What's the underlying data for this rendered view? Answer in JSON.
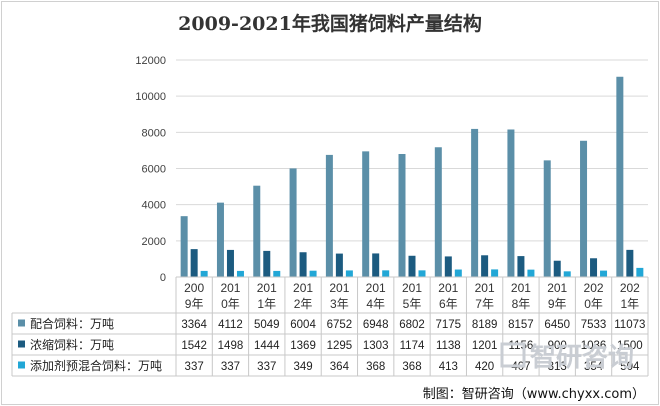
{
  "chart_data": {
    "type": "bar",
    "title": "2009-2021年我国猪饲料产量结构",
    "categories": [
      [
        "200",
        "9年"
      ],
      [
        "201",
        "0年"
      ],
      [
        "201",
        "1年"
      ],
      [
        "201",
        "2年"
      ],
      [
        "201",
        "3年"
      ],
      [
        "201",
        "4年"
      ],
      [
        "201",
        "5年"
      ],
      [
        "201",
        "6年"
      ],
      [
        "201",
        "7年"
      ],
      [
        "201",
        "8年"
      ],
      [
        "201",
        "9年"
      ],
      [
        "202",
        "0年"
      ],
      [
        "202",
        "1年"
      ]
    ],
    "ylim": [
      0,
      12000
    ],
    "yticks": [
      "0",
      "2000",
      "4000",
      "6000",
      "8000",
      "10000",
      "12000"
    ],
    "grid": true,
    "legend": "data-table",
    "series": [
      {
        "name": "配合饲料：万吨",
        "color": "#5b8fa8",
        "values": [
          3364,
          4112,
          5049,
          6004,
          6752,
          6948,
          6802,
          7175,
          8189,
          8157,
          6450,
          7533,
          11073
        ]
      },
      {
        "name": "浓缩饲料：万吨",
        "color": "#1c5b80",
        "values": [
          1542,
          1498,
          1444,
          1369,
          1295,
          1303,
          1174,
          1138,
          1201,
          1156,
          900,
          1036,
          1500
        ]
      },
      {
        "name": "添加剂预混合饲料：万吨",
        "color": "#22a7d6",
        "values": [
          337,
          337,
          337,
          349,
          364,
          368,
          368,
          413,
          420,
          407,
          313,
          354,
          504
        ]
      }
    ]
  },
  "watermark": "智研咨询",
  "source": "制图：智研咨询（www.chyxx.com）"
}
